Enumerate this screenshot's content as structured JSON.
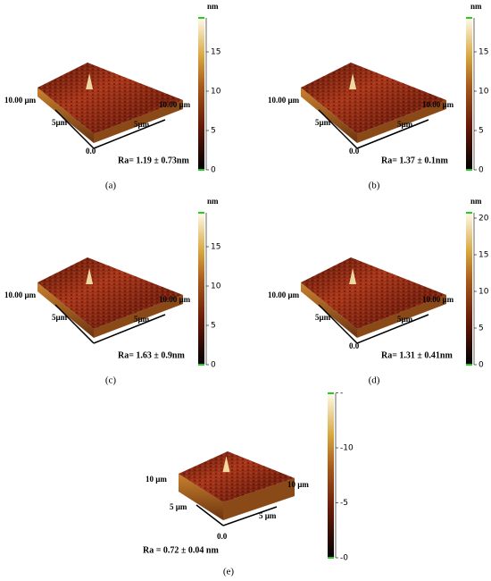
{
  "panels": [
    {
      "label": "(a)",
      "unit": "nm",
      "colorbar_ticks": [
        "0",
        "5",
        "10",
        "15"
      ],
      "axis_left": "10.00 µm",
      "axis_right": "10.00 µm",
      "mid_left": "5µm",
      "mid_right": "5µm",
      "origin": "0.0",
      "roughness": "Ra= 1.19 ± 0.73nm"
    },
    {
      "label": "(b)",
      "unit": "nm",
      "colorbar_ticks": [
        "0",
        "5",
        "10",
        "15"
      ],
      "axis_left": "10.00 µm",
      "axis_right": "10.00 µm",
      "mid_left": "5µm",
      "mid_right": "5µm",
      "origin": "0.0",
      "roughness": "Ra= 1.37 ± 0.1nm"
    },
    {
      "label": "(c)",
      "unit": "nm",
      "colorbar_ticks": [
        "0",
        "5",
        "10",
        "15"
      ],
      "axis_left": "10.00 µm",
      "axis_right": "10.00 µm",
      "mid_left": "5µm",
      "mid_right": "5µm",
      "roughness": "Ra= 1.63 ± 0.9nm"
    },
    {
      "label": "(d)",
      "unit": "nm",
      "colorbar_ticks": [
        "0",
        "5",
        "10",
        "15",
        "20"
      ],
      "axis_left": "10.00 µm",
      "axis_right": "10.00 µm",
      "mid_left": "5µm",
      "mid_right": "5µm",
      "origin": "0.0",
      "roughness": "Ra= 1.31 ± 0.41nm"
    },
    {
      "label": "(e)",
      "colorbar_ticks": [
        "-0",
        "-5",
        "-10",
        "-"
      ],
      "axis_left": "10 µm",
      "axis_right": "10 µm",
      "mid_left": "5 µm",
      "mid_right": "5 µm",
      "origin": "0.0",
      "roughness": "Ra = 0.72 ± 0.04 nm"
    }
  ]
}
